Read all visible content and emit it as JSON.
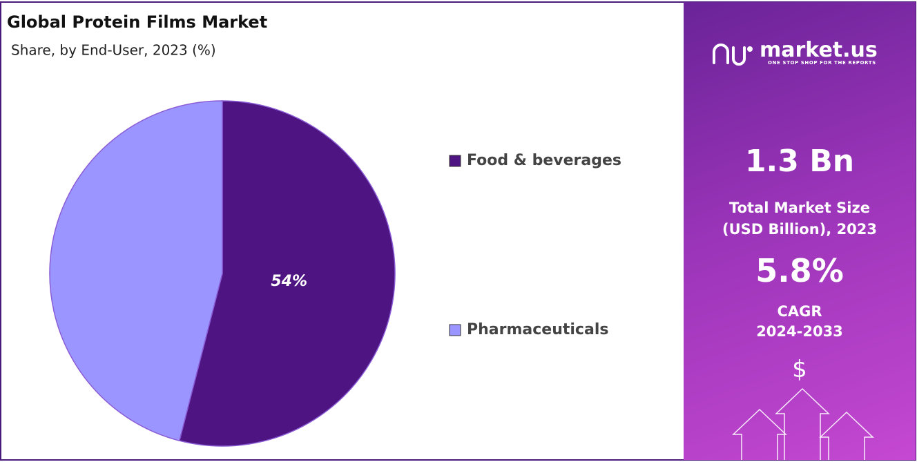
{
  "chart_data": {
    "type": "pie",
    "title": "Global Protein Films Market",
    "subtitle": "Share, by End-User, 2023 (%)",
    "categories": [
      "Food & beverages",
      "Pharmaceuticals"
    ],
    "values": [
      54,
      46
    ],
    "value_labels": [
      "54%",
      null
    ],
    "colors": [
      "#4e1582",
      "#9b95ff"
    ]
  },
  "panel": {
    "logo": "market.us",
    "tagline": "ONE STOP SHOP FOR THE REPORTS",
    "market_size": "1.3 Bn",
    "market_size_label": [
      "Total Market Size",
      "(USD Billion), 2023"
    ],
    "cagr": "5.8%",
    "cagr_label": [
      "CAGR",
      "2024-2033"
    ],
    "currency": "$"
  }
}
